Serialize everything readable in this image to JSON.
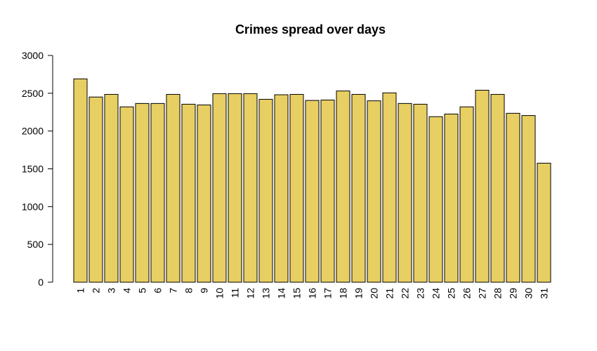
{
  "chart_data": {
    "type": "bar",
    "title": "Crimes spread over days",
    "xlabel": "",
    "ylabel": "",
    "ylim": [
      0,
      3000
    ],
    "yticks": [
      0,
      500,
      1000,
      1500,
      2000,
      2500,
      3000
    ],
    "categories": [
      "1",
      "2",
      "3",
      "4",
      "5",
      "6",
      "7",
      "8",
      "9",
      "10",
      "11",
      "12",
      "13",
      "14",
      "15",
      "16",
      "17",
      "18",
      "19",
      "20",
      "21",
      "22",
      "23",
      "24",
      "25",
      "26",
      "27",
      "28",
      "29",
      "30",
      "31"
    ],
    "values": [
      2690,
      2450,
      2485,
      2320,
      2365,
      2365,
      2485,
      2355,
      2345,
      2495,
      2495,
      2495,
      2420,
      2480,
      2485,
      2405,
      2410,
      2530,
      2485,
      2400,
      2505,
      2365,
      2355,
      2190,
      2225,
      2320,
      2540,
      2485,
      2235,
      2205,
      1575
    ],
    "bar_color": "#E8CF63",
    "grid": false,
    "legend": "none"
  }
}
